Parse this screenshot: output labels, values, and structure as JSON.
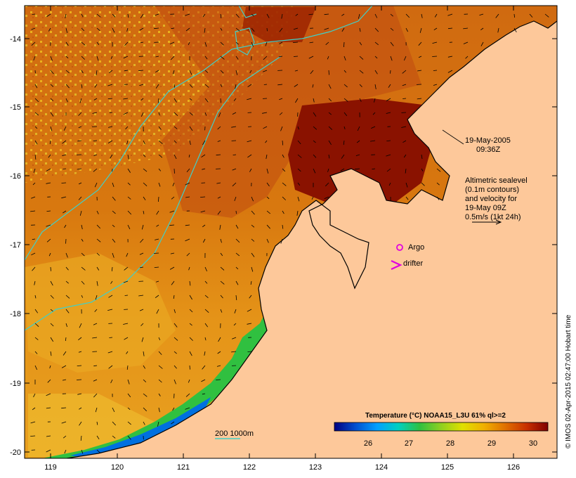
{
  "map": {
    "x_ticks": [
      "119",
      "120",
      "121",
      "122",
      "123",
      "124",
      "125",
      "126"
    ],
    "y_ticks": [
      "-14",
      "-15",
      "-16",
      "-17",
      "-18",
      "-19",
      "-20"
    ]
  },
  "annotations": {
    "date": "19-May-2005",
    "time": "09:36Z",
    "altimetry_lines": [
      "Altimetric sealevel",
      "(0.1m contours)",
      "and velocity for",
      "19-May 09Z",
      "0.5m/s (1kt 24h)"
    ],
    "argo_label": "Argo",
    "drifter_label": "drifter",
    "bathymetry_label": "200  1000m"
  },
  "colorbar": {
    "title": "Temperature (°C) NOAA15_L3U 61% ql>=2",
    "ticks": [
      "26",
      "27",
      "28",
      "29",
      "30"
    ],
    "colors": [
      "#000080",
      "#0050d0",
      "#00a0ff",
      "#00d0c0",
      "#30c040",
      "#90d020",
      "#e0e000",
      "#f0b000",
      "#e07000",
      "#c83000",
      "#800000"
    ]
  },
  "credit": "© IMOS 02-Apr-2015 02:47:00 Hobart time",
  "colors": {
    "land": "#fdc89a",
    "warm_sea": "#d06a10",
    "hot_sea": "#8a1200",
    "cool_sea": "#e8a020",
    "contour": "#40d0c8",
    "argo": "#e000e0"
  }
}
